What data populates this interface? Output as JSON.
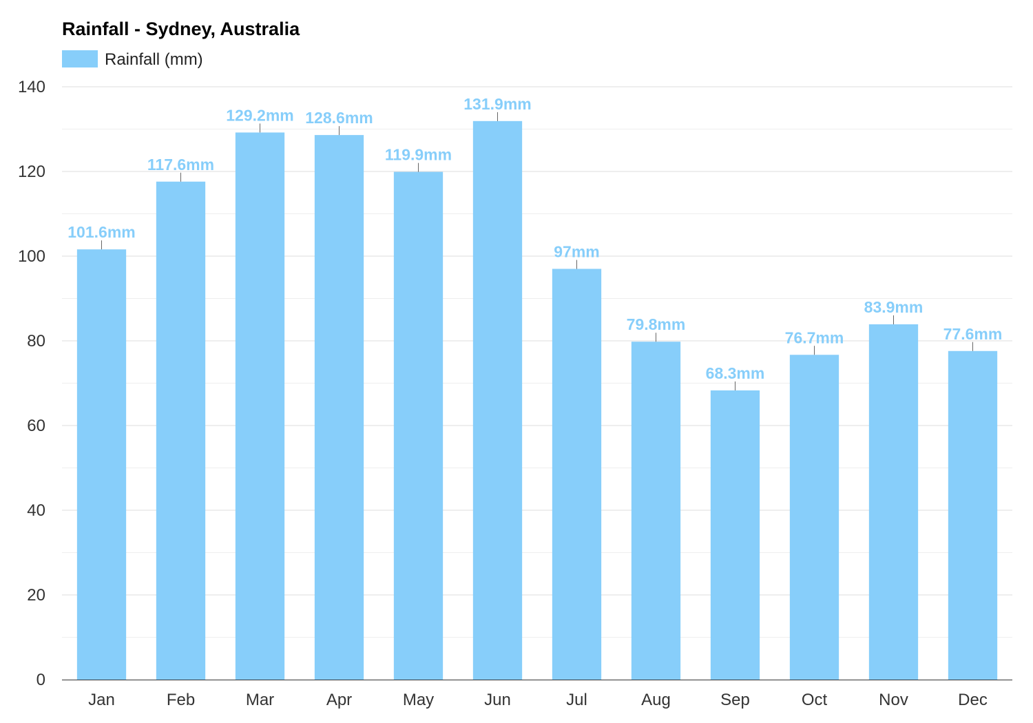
{
  "chart_data": {
    "type": "bar",
    "title": "Rainfall - Sydney, Australia",
    "xlabel": "",
    "ylabel": "",
    "categories": [
      "Jan",
      "Feb",
      "Mar",
      "Apr",
      "May",
      "Jun",
      "Jul",
      "Aug",
      "Sep",
      "Oct",
      "Nov",
      "Dec"
    ],
    "series": [
      {
        "name": "Rainfall (mm)",
        "color": "#87cefa",
        "values": [
          101.6,
          117.6,
          129.2,
          128.6,
          119.9,
          131.9,
          97,
          79.8,
          68.3,
          76.7,
          83.9,
          77.6
        ],
        "data_labels": [
          "101.6mm",
          "117.6mm",
          "129.2mm",
          "128.6mm",
          "119.9mm",
          "131.9mm",
          "97mm",
          "79.8mm",
          "68.3mm",
          "76.7mm",
          "83.9mm",
          "77.6mm"
        ]
      }
    ],
    "ylim": [
      0,
      140
    ],
    "yticks": [
      0,
      20,
      40,
      60,
      80,
      100,
      120,
      140
    ],
    "grid": true,
    "legend_position": "top-left"
  }
}
